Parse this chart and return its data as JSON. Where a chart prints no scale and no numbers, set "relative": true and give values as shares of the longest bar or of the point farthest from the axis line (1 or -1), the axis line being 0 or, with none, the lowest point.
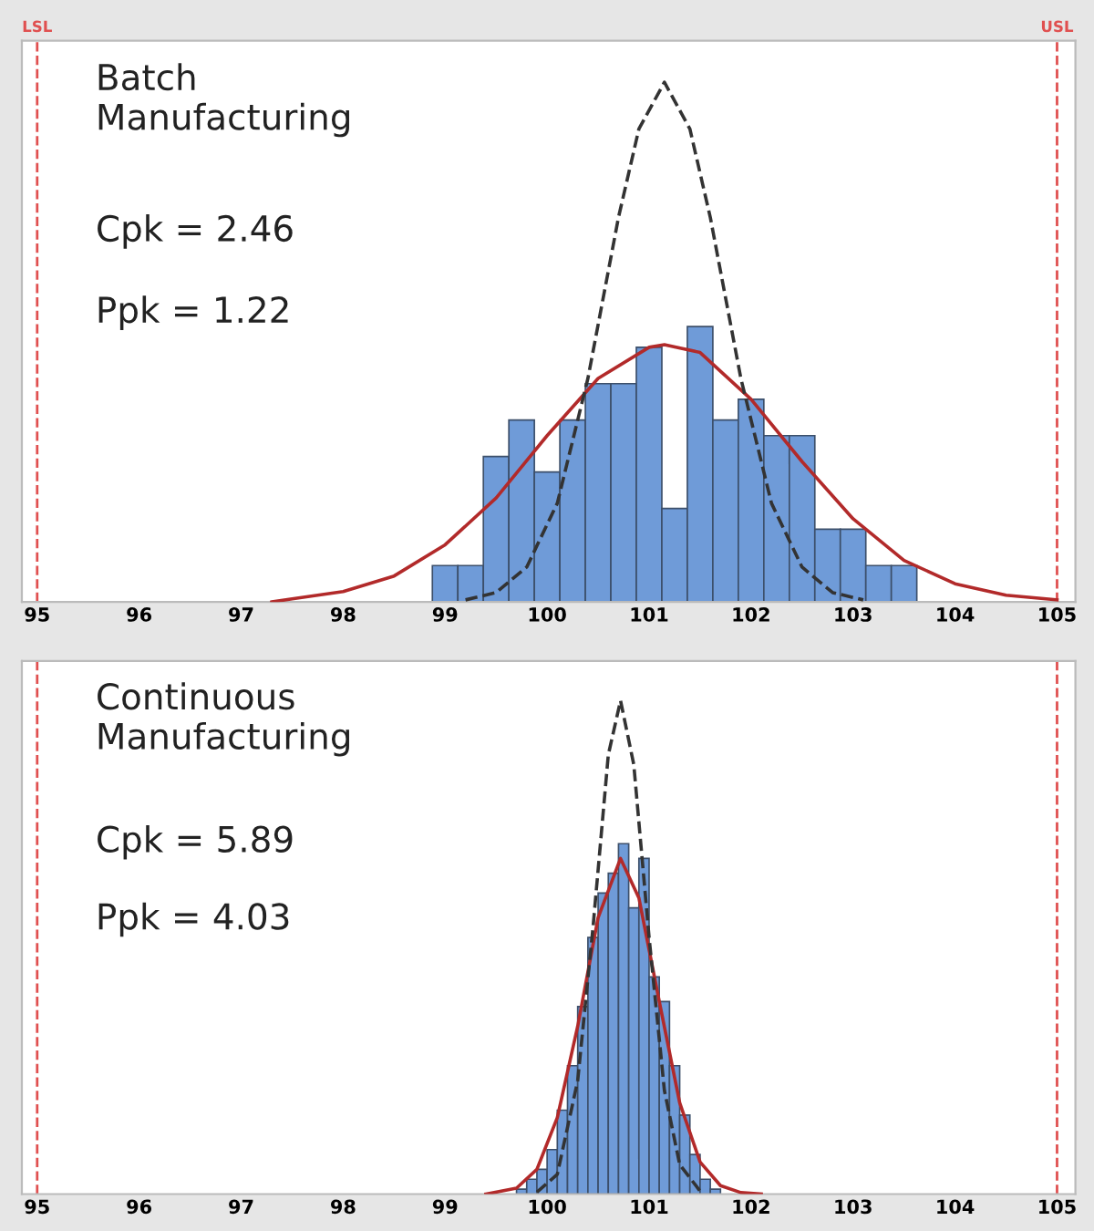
{
  "chart_data": [
    {
      "type": "histogram",
      "relative": true,
      "title": "Batch\nManufacturing",
      "annotations": [
        "Cpk = 2.46",
        "Ppk = 1.22"
      ],
      "xlim": [
        94.85,
        105.18
      ],
      "xticks": [
        95,
        96,
        97,
        98,
        99,
        100,
        101,
        102,
        103,
        104,
        105
      ],
      "tick_labels": "x",
      "grid": false,
      "legend": false,
      "series": [
        {
          "color": "#6f9bd8",
          "bins": [
            98.875,
            99.125,
            99.375,
            99.625,
            99.875,
            100.125,
            100.375,
            100.625,
            100.875,
            101.125,
            101.375,
            101.625,
            101.875,
            102.125,
            102.375,
            102.625,
            102.875,
            103.125,
            103.375,
            103.625
          ],
          "values": [
            0.07,
            0.07,
            0.28,
            0.35,
            0.25,
            0.35,
            0.42,
            0.42,
            0.49,
            0.18,
            0.53,
            0.35,
            0.39,
            0.32,
            0.32,
            0.14,
            0.14,
            0.07,
            0.07
          ]
        },
        {
          "type": "line",
          "color": "#b22a2a",
          "line_style": "solid",
          "x": [
            97.3,
            97.5,
            98,
            98.5,
            99,
            99.5,
            100,
            100.5,
            101,
            101.15,
            101.5,
            102,
            102.5,
            103,
            103.5,
            104,
            104.5,
            105
          ],
          "values": [
            0.0,
            0.006,
            0.02,
            0.05,
            0.11,
            0.2,
            0.32,
            0.43,
            0.49,
            0.495,
            0.48,
            0.39,
            0.27,
            0.16,
            0.08,
            0.035,
            0.013,
            0.004
          ]
        },
        {
          "type": "line",
          "color": "#333333",
          "line_style": "dashed",
          "x": [
            99.2,
            99.5,
            99.8,
            100.1,
            100.4,
            100.7,
            100.9,
            101.15,
            101.4,
            101.6,
            101.9,
            102.2,
            102.5,
            102.8,
            103.1
          ],
          "values": [
            0.004,
            0.018,
            0.067,
            0.19,
            0.43,
            0.74,
            0.91,
            1,
            0.91,
            0.74,
            0.43,
            0.19,
            0.067,
            0.018,
            0.004
          ]
        }
      ],
      "ref_lines": [
        {
          "axis": "x",
          "value": 95,
          "label": "LSL",
          "color": "#e05050",
          "line_style": "dashed"
        },
        {
          "axis": "x",
          "value": 105,
          "label": "USL",
          "color": "#e05050",
          "line_style": "dashed"
        }
      ]
    },
    {
      "type": "histogram",
      "relative": true,
      "title": "Continuous\nManufacturing",
      "annotations": [
        "Cpk = 5.89",
        "Ppk = 4.03"
      ],
      "xlim": [
        94.85,
        105.18
      ],
      "xticks": [
        95,
        96,
        97,
        98,
        99,
        100,
        101,
        102,
        103,
        104,
        105
      ],
      "tick_labels": "x",
      "grid": false,
      "legend": false,
      "series": [
        {
          "color": "#6f9bd8",
          "bins": [
            99.7,
            99.8,
            99.9,
            100.0,
            100.1,
            100.2,
            100.3,
            100.4,
            100.5,
            100.6,
            100.7,
            100.8,
            100.9,
            101.0,
            101.1,
            101.2,
            101.3,
            101.4,
            101.5,
            101.6,
            101.7
          ],
          "values": [
            0.01,
            0.03,
            0.05,
            0.09,
            0.17,
            0.26,
            0.38,
            0.52,
            0.61,
            0.65,
            0.71,
            0.58,
            0.68,
            0.44,
            0.39,
            0.26,
            0.16,
            0.08,
            0.03,
            0.01
          ]
        },
        {
          "type": "line",
          "color": "#b22a2a",
          "line_style": "solid",
          "x": [
            99.4,
            99.7,
            99.9,
            100.1,
            100.3,
            100.5,
            100.72,
            100.9,
            101.1,
            101.3,
            101.5,
            101.7,
            101.9,
            102.1
          ],
          "values": [
            0.0,
            0.012,
            0.05,
            0.155,
            0.34,
            0.56,
            0.68,
            0.6,
            0.39,
            0.185,
            0.065,
            0.017,
            0.003,
            0.0
          ]
        },
        {
          "type": "line",
          "color": "#333333",
          "line_style": "dashed",
          "x": [
            99.9,
            100.1,
            100.3,
            100.45,
            100.6,
            100.72,
            100.85,
            101.0,
            101.15,
            101.3,
            101.5
          ],
          "values": [
            0.004,
            0.04,
            0.23,
            0.54,
            0.89,
            1,
            0.87,
            0.52,
            0.21,
            0.06,
            0.006
          ]
        }
      ],
      "ref_lines": [
        {
          "axis": "x",
          "value": 95,
          "color": "#e05050",
          "line_style": "dashed"
        },
        {
          "axis": "x",
          "value": 105,
          "color": "#e05050",
          "line_style": "dashed"
        }
      ]
    }
  ]
}
